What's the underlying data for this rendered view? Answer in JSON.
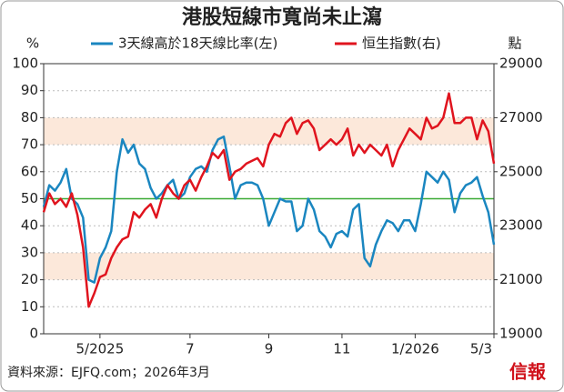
{
  "chart_data": {
    "type": "line",
    "title": "港股短線市寬尚未止瀉",
    "y_unit": "%",
    "y2_unit": "點",
    "source": "資料來源：EJFQ.com；2026年3月",
    "logo": "信報",
    "categories": [
      null,
      null,
      null,
      null,
      null,
      null,
      null,
      null,
      null,
      null,
      "5/2025",
      null,
      null,
      null,
      null,
      null,
      null,
      null,
      null,
      null,
      null,
      null,
      null,
      null,
      null,
      null,
      "7",
      null,
      null,
      null,
      null,
      null,
      null,
      null,
      null,
      null,
      null,
      null,
      null,
      null,
      "9",
      null,
      null,
      null,
      null,
      null,
      null,
      null,
      null,
      null,
      null,
      null,
      null,
      "11",
      null,
      null,
      null,
      null,
      null,
      null,
      null,
      null,
      null,
      null,
      null,
      null,
      "1/2026",
      null,
      null,
      null,
      null,
      null,
      null,
      null,
      null,
      null,
      null,
      null,
      null,
      null,
      "5/3"
    ],
    "ylim": [
      0,
      100
    ],
    "yticks": [
      0,
      10,
      20,
      30,
      40,
      50,
      60,
      70,
      80,
      90,
      100
    ],
    "y2lim": [
      19000,
      29000
    ],
    "y2ticks": [
      19000,
      21000,
      23000,
      25000,
      27000,
      29000
    ],
    "bands": [
      [
        20,
        30
      ],
      [
        70,
        80
      ]
    ],
    "band_color": "#fce8da",
    "reference_line": 50,
    "reference_color": "#3aaa35",
    "series": [
      {
        "name": "3天線高於18天線比率(左)",
        "color": "#1a86c0",
        "values": [
          47,
          55,
          53,
          56,
          61,
          50,
          48,
          43,
          20,
          19,
          28,
          32,
          38,
          60,
          72,
          67,
          70,
          63,
          61,
          54,
          50,
          52,
          55,
          57,
          50,
          52,
          58,
          61,
          62,
          60,
          68,
          72,
          73,
          62,
          50,
          55,
          56,
          56,
          55,
          50,
          40,
          45,
          50,
          49,
          49,
          38,
          40,
          50,
          46,
          38,
          36,
          32,
          37,
          38,
          36,
          46,
          48,
          28,
          25,
          33,
          38,
          42,
          41,
          38,
          42,
          42,
          38,
          48,
          60,
          58,
          56,
          60,
          57,
          45,
          52,
          55,
          56,
          58,
          51,
          45,
          33
        ]
      },
      {
        "name": "恒生指數(右)",
        "color": "#e0141e",
        "axis": "y2",
        "values": [
          23500,
          24200,
          23800,
          24000,
          23700,
          24200,
          23400,
          22200,
          20000,
          20500,
          21100,
          21200,
          21800,
          22200,
          22500,
          22600,
          23500,
          23300,
          23600,
          23800,
          23300,
          24000,
          24500,
          24200,
          24000,
          24500,
          24700,
          24300,
          24800,
          25200,
          25700,
          25500,
          25800,
          24700,
          25000,
          25100,
          25300,
          25400,
          25500,
          25200,
          26000,
          26400,
          26300,
          26800,
          27000,
          26400,
          26800,
          26900,
          26600,
          25800,
          26000,
          26200,
          26000,
          26200,
          26600,
          25600,
          26000,
          25700,
          26000,
          25800,
          25600,
          26000,
          25200,
          25800,
          26200,
          26600,
          26400,
          26200,
          27000,
          26600,
          26700,
          27000,
          27900,
          26800,
          26800,
          27000,
          27000,
          26200,
          26900,
          26500,
          25300
        ]
      }
    ]
  }
}
